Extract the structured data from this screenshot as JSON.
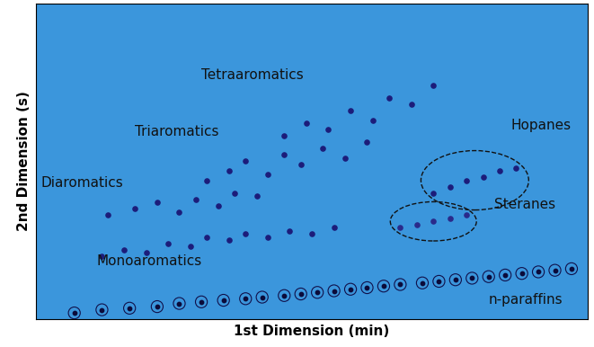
{
  "chart_data": {
    "type": "scatter",
    "x_label": "1st Dimension (min)",
    "y_label": "2nd Dimension (s)",
    "xlim": [
      0,
      100
    ],
    "ylim": [
      0,
      100
    ],
    "xticks": [],
    "yticks": [],
    "tick_labels": false,
    "grid": false,
    "series": [
      {
        "group": "n-paraffins",
        "color": "#0b0b3a",
        "marker": "ring",
        "x": [
          7,
          12,
          17,
          22,
          26,
          30,
          34,
          38,
          41,
          45,
          48,
          51,
          54,
          57,
          60,
          63,
          66,
          70,
          73,
          76,
          79,
          82,
          85,
          88,
          91,
          94,
          97
        ],
        "values": [
          2,
          3,
          3.5,
          4,
          5,
          5.5,
          6,
          6.5,
          7,
          7.5,
          8,
          8.5,
          9,
          9.5,
          10,
          10.5,
          11,
          11.5,
          12,
          12.5,
          13,
          13.5,
          14,
          14.5,
          15,
          15.5,
          16
        ]
      },
      {
        "group": "Monoaromatics",
        "color": "#1c1c7a",
        "marker": "o",
        "x": [
          12,
          16,
          20,
          24,
          28,
          31,
          35,
          38,
          42,
          46,
          50,
          54
        ],
        "values": [
          20,
          22,
          21,
          24,
          23,
          26,
          25,
          27,
          26,
          28,
          27,
          29
        ]
      },
      {
        "group": "Diaromatics",
        "color": "#1c1c7a",
        "marker": "o",
        "x": [
          13,
          18,
          22,
          26,
          29,
          33,
          36,
          40
        ],
        "values": [
          33,
          35,
          37,
          34,
          38,
          36,
          40,
          39
        ]
      },
      {
        "group": "Triaromatics",
        "color": "#1c1c7a",
        "marker": "o",
        "x": [
          31,
          35,
          38,
          42,
          45,
          48,
          52,
          56,
          60
        ],
        "values": [
          44,
          47,
          50,
          46,
          52,
          49,
          54,
          51,
          56
        ]
      },
      {
        "group": "Tetraaromatics",
        "color": "#1c1c7a",
        "marker": "o",
        "x": [
          45,
          49,
          53,
          57,
          61,
          64,
          68,
          72
        ],
        "values": [
          58,
          62,
          60,
          66,
          63,
          70,
          68,
          74
        ]
      },
      {
        "group": "Hopanes",
        "color": "#1c1c7a",
        "marker": "o",
        "line_style": "dashed",
        "x": [
          72,
          75,
          78,
          81,
          84,
          87
        ],
        "values": [
          40,
          42,
          44,
          45,
          47,
          48
        ]
      },
      {
        "group": "Steranes",
        "color": "#2a2a8a",
        "marker": "o",
        "line_style": "dashed",
        "x": [
          66,
          69,
          72,
          75,
          78
        ],
        "values": [
          29,
          30,
          31,
          32,
          33
        ]
      }
    ],
    "annotations": [
      {
        "text": "Tetraaromatics",
        "x": 30,
        "y": 76
      },
      {
        "text": "Triaromatics",
        "x": 18,
        "y": 58
      },
      {
        "text": "Diaromatics",
        "x": 1,
        "y": 42
      },
      {
        "text": "Monoaromatics",
        "x": 11,
        "y": 17
      },
      {
        "text": "Hopanes",
        "x": 86,
        "y": 60
      },
      {
        "text": "Steranes",
        "x": 83,
        "y": 35
      },
      {
        "text": "n-paraffins",
        "x": 82,
        "y": 5
      }
    ]
  }
}
